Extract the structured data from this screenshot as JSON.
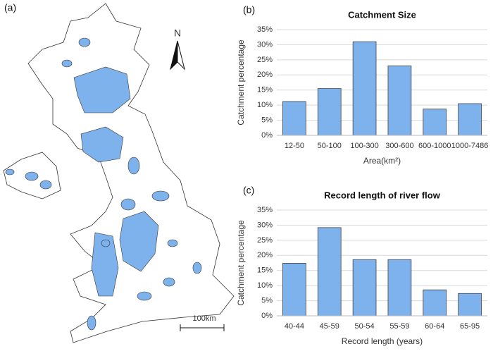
{
  "map": {
    "panel_label": "(a)",
    "north": "N",
    "scale_label": "100km"
  },
  "chart_data": [
    {
      "type": "bar",
      "panel_label": "(b)",
      "title": "Catchment Size",
      "x_label": "Area(km²)",
      "y_label": "Catchment percentage",
      "categories": [
        "12-50",
        "50-100",
        "100-300",
        "300-600",
        "600-1000",
        "1000-7486"
      ],
      "values": [
        11.2,
        15.5,
        31,
        23,
        8.7,
        10.5
      ],
      "color": "#7eb2ec",
      "ylim": [
        0,
        35
      ],
      "yticks": [
        {
          "value": 0,
          "label": "0%"
        },
        {
          "value": 5,
          "label": "5%"
        },
        {
          "value": 10,
          "label": "10%"
        },
        {
          "value": 15,
          "label": "15%"
        },
        {
          "value": 20,
          "label": "20%"
        },
        {
          "value": 25,
          "label": "25%"
        },
        {
          "value": 30,
          "label": "30%"
        },
        {
          "value": 35,
          "label": "35%"
        }
      ],
      "grid": true
    },
    {
      "type": "bar",
      "panel_label": "(c)",
      "title": "Record length of river flow",
      "x_label": "Record length (years)",
      "y_label": "Catchment percentage",
      "categories": [
        "40-44",
        "45-59",
        "50-54",
        "55-59",
        "60-64",
        "65-95"
      ],
      "values": [
        17.4,
        29.2,
        18.6,
        18.6,
        8.6,
        7.4
      ],
      "color": "#7eb2ec",
      "ylim": [
        0,
        35
      ],
      "yticks": [
        {
          "value": 0,
          "label": "0%"
        },
        {
          "value": 5,
          "label": "5%"
        },
        {
          "value": 10,
          "label": "10%"
        },
        {
          "value": 15,
          "label": "15%"
        },
        {
          "value": 20,
          "label": "20%"
        },
        {
          "value": 25,
          "label": "25%"
        },
        {
          "value": 30,
          "label": "30%"
        },
        {
          "value": 35,
          "label": "35%"
        }
      ],
      "grid": true
    }
  ]
}
